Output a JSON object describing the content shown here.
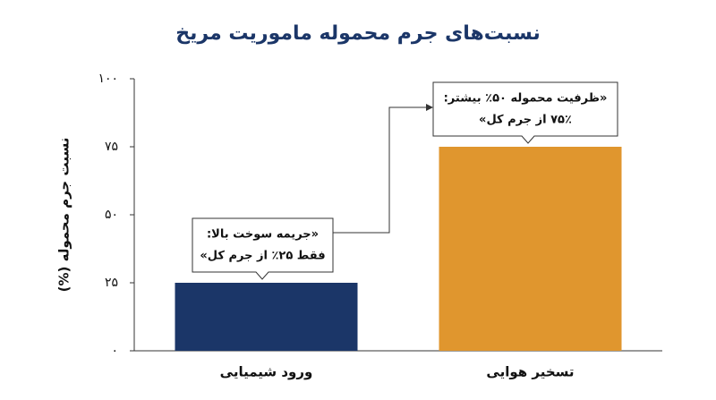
{
  "chart_data": {
    "type": "bar",
    "title": "نسبت‌های جرم محموله ماموریت مریخ",
    "y_label": "نسبت جرم محموله (%)",
    "categories": [
      "ورود شیمیایی",
      "تسخیر هوایی"
    ],
    "values": [
      25,
      75
    ],
    "colors": [
      "#1b3668",
      "#e0962e"
    ],
    "ylim": [
      0,
      100
    ],
    "yticks": [
      {
        "value": 0,
        "label": "۰"
      },
      {
        "value": 25,
        "label": "۲۵"
      },
      {
        "value": 50,
        "label": "۵۰"
      },
      {
        "value": 75,
        "label": "۷۵"
      },
      {
        "value": 100,
        "label": "۱۰۰"
      }
    ],
    "annotations": [
      {
        "lines": [
          "«جریمه سوخت بالا:",
          "فقط ۲۵٪ از جرم کل»"
        ]
      },
      {
        "lines": [
          "«ظرفیت محموله ۵۰٪ بیشتر:",
          "۷۵٪ از جرم کل»"
        ]
      }
    ]
  }
}
